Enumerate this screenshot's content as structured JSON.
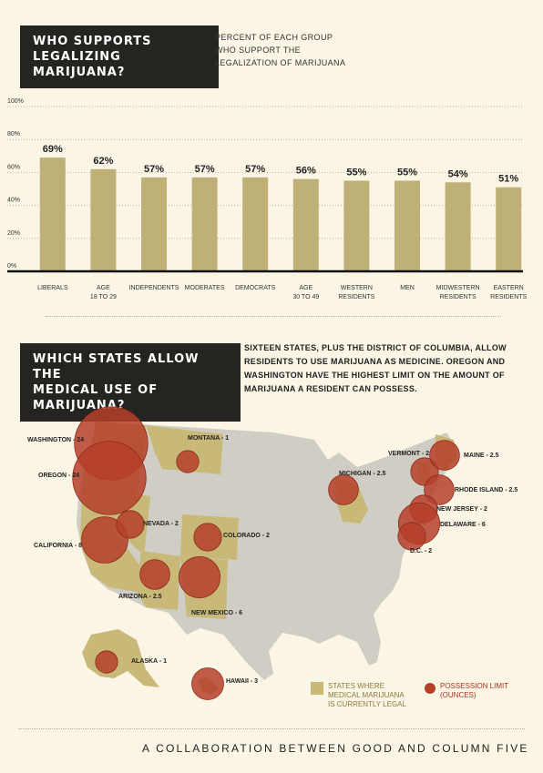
{
  "section1": {
    "title_line1": "WHO SUPPORTS",
    "title_line2": "LEGALIZING MARIJUANA?",
    "subtitle_line1": "PERCENT OF EACH GROUP",
    "subtitle_line2": "WHO SUPPORT THE",
    "subtitle_line3": "LEGALIZATION OF MARIJUANA"
  },
  "chart_data": {
    "type": "bar",
    "categories": [
      "LIBERALS",
      "AGE 18 TO 29",
      "INDEPENDENTS",
      "MODERATES",
      "DEMOCRATS",
      "AGE 30 TO 49",
      "WESTERN RESIDENTS",
      "MEN",
      "MIDWESTERN RESIDENTS",
      "EASTERN RESIDENTS"
    ],
    "category_lines": [
      [
        "LIBERALS"
      ],
      [
        "AGE",
        "18 TO 29"
      ],
      [
        "INDEPENDENTS"
      ],
      [
        "MODERATES"
      ],
      [
        "DEMOCRATS"
      ],
      [
        "AGE",
        "30 TO 49"
      ],
      [
        "WESTERN",
        "RESIDENTS"
      ],
      [
        "MEN"
      ],
      [
        "MIDWESTERN",
        "RESIDENTS"
      ],
      [
        "EASTERN",
        "RESIDENTS"
      ]
    ],
    "values": [
      69,
      62,
      57,
      57,
      57,
      56,
      55,
      55,
      54,
      51
    ],
    "value_labels": [
      "69%",
      "62%",
      "57%",
      "57%",
      "57%",
      "56%",
      "55%",
      "55%",
      "54%",
      "51%"
    ],
    "ylim": [
      0,
      100
    ],
    "yticks": [
      0,
      20,
      40,
      60,
      80,
      100
    ],
    "ytick_labels": [
      "0%",
      "20%",
      "40%",
      "60%",
      "80%",
      "100%"
    ],
    "bar_color": "#bfb078"
  },
  "section2": {
    "title_line1": "WHICH STATES ALLOW THE",
    "title_line2": "MEDICAL USE OF MARIJUANA?",
    "desc_line1": "SIXTEEN STATES, PLUS THE DISTRICT OF COLUMBIA, ALLOW",
    "desc_line2": "RESIDENTS TO USE MARIJUANA AS MEDICINE. OREGON AND",
    "desc_line3": "WASHINGTON HAVE THE HIGHEST LIMIT ON THE AMOUNT OF",
    "desc_line4": "MARIJUANA A RESIDENT CAN POSSESS."
  },
  "map": {
    "states": [
      {
        "name": "WASHINGTON",
        "value": 24,
        "label": "WASHINGTON - 24"
      },
      {
        "name": "OREGON",
        "value": 24,
        "label": "OREGON - 24"
      },
      {
        "name": "CALIFORNIA",
        "value": 8,
        "label": "CALIFORNIA - 8"
      },
      {
        "name": "NEVADA",
        "value": 2,
        "label": "NEVADA - 2"
      },
      {
        "name": "MONTANA",
        "value": 1,
        "label": "MONTANA - 1"
      },
      {
        "name": "COLORADO",
        "value": 2,
        "label": "COLORADO - 2"
      },
      {
        "name": "ARIZONA",
        "value": 2.5,
        "label": "ARIZONA - 2.5"
      },
      {
        "name": "NEW MEXICO",
        "value": 6,
        "label": "NEW MEXICO - 6"
      },
      {
        "name": "MICHIGAN",
        "value": 2.5,
        "label": "MICHIGAN - 2.5"
      },
      {
        "name": "VERMONT",
        "value": 2,
        "label": "VERMONT - 2"
      },
      {
        "name": "MAINE",
        "value": 2.5,
        "label": "MAINE - 2.5"
      },
      {
        "name": "RHODE ISLAND",
        "value": 2.5,
        "label": "RHODE ISLAND - 2.5"
      },
      {
        "name": "NEW JERSEY",
        "value": 2,
        "label": "NEW JERSEY - 2"
      },
      {
        "name": "DELAWARE",
        "value": 6,
        "label": "DELAWARE - 6"
      },
      {
        "name": "D.C.",
        "value": 2,
        "label": "D.C. - 2"
      },
      {
        "name": "ALASKA",
        "value": 1,
        "label": "ALASKA - 1"
      },
      {
        "name": "HAWAII",
        "value": 3,
        "label": "HAWAII - 3"
      }
    ],
    "legend_states_line1": "STATES WHERE",
    "legend_states_line2": "MEDICAL MARIJUANA",
    "legend_states_line3": "IS CURRENTLY LEGAL",
    "legend_limit_line1": "POSSESSION LIMIT",
    "legend_limit_line2": "(OUNCES)",
    "colors": {
      "legal_state": "#c8b978",
      "land": "#cfcdc4",
      "bubble": "#a8341f",
      "bubble_fill": "#b5402a",
      "legend_limit_text": "#a8341f"
    }
  },
  "footer": {
    "text": "A COLLABORATION BETWEEN GOOD AND COLUMN FIVE"
  }
}
